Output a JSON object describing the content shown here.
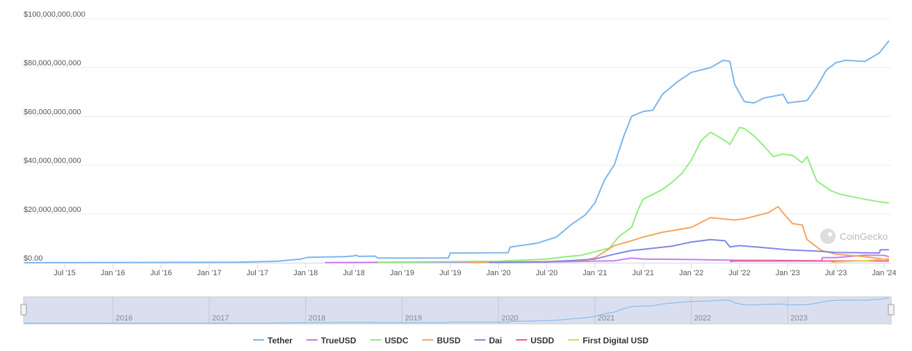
{
  "chart_data": {
    "type": "line",
    "title": "",
    "xlabel": "",
    "ylabel": "",
    "ylim": [
      0,
      100000000000
    ],
    "yticks": [
      "$0.00",
      "$20,000,000,000",
      "$40,000,000,000",
      "$60,000,000,000",
      "$80,000,000,000",
      "$100,000,000,000"
    ],
    "ytick_values": [
      0,
      20,
      40,
      60,
      80,
      100
    ],
    "y_unit": "billions USD",
    "xticks": [
      "Jul '15",
      "Jan '16",
      "Jul '16",
      "Jan '17",
      "Jul '17",
      "Jan '18",
      "Jul '18",
      "Jan '19",
      "Jul '19",
      "Jan '20",
      "Jul '20",
      "Jan '21",
      "Jul '21",
      "Jan '22",
      "Jul '22",
      "Jan '23",
      "Jul '23",
      "Jan '24"
    ],
    "xtick_values": [
      2015.5,
      2016,
      2016.5,
      2017,
      2017.5,
      2018,
      2018.5,
      2019,
      2019.5,
      2020,
      2020.5,
      2021,
      2021.5,
      2022,
      2022.5,
      2023,
      2023.5,
      2024
    ],
    "xlim": [
      2015.08,
      2024.08
    ],
    "grid": true,
    "legend_position": "bottom",
    "navigator_labels": [
      "2016",
      "2017",
      "2018",
      "2019",
      "2020",
      "2021",
      "2022",
      "2023"
    ],
    "watermark": "CoinGecko",
    "series": [
      {
        "name": "Tether",
        "color": "#7cb5ec",
        "points": [
          [
            2015.08,
            0
          ],
          [
            2017.3,
            0.2
          ],
          [
            2017.7,
            0.6
          ],
          [
            2017.95,
            1.5
          ],
          [
            2018.02,
            2.2
          ],
          [
            2018.4,
            2.5
          ],
          [
            2018.5,
            2.8
          ],
          [
            2018.52,
            3.1
          ],
          [
            2018.55,
            2.6
          ],
          [
            2018.72,
            2.7
          ],
          [
            2018.75,
            1.9
          ],
          [
            2019.48,
            1.9
          ],
          [
            2019.5,
            4.0
          ],
          [
            2020.1,
            4.1
          ],
          [
            2020.12,
            6.4
          ],
          [
            2020.4,
            8.0
          ],
          [
            2020.5,
            9.3
          ],
          [
            2020.6,
            10.5
          ],
          [
            2020.75,
            15.5
          ],
          [
            2020.9,
            19.6
          ],
          [
            2021.0,
            24.5
          ],
          [
            2021.1,
            34
          ],
          [
            2021.2,
            40
          ],
          [
            2021.3,
            52
          ],
          [
            2021.38,
            60
          ],
          [
            2021.5,
            62
          ],
          [
            2021.6,
            62.5
          ],
          [
            2021.7,
            69
          ],
          [
            2021.85,
            74
          ],
          [
            2022.0,
            78
          ],
          [
            2022.2,
            80
          ],
          [
            2022.33,
            83
          ],
          [
            2022.4,
            82.5
          ],
          [
            2022.45,
            73
          ],
          [
            2022.55,
            66
          ],
          [
            2022.65,
            65.5
          ],
          [
            2022.75,
            67.5
          ],
          [
            2022.95,
            69
          ],
          [
            2023.0,
            65.5
          ],
          [
            2023.2,
            66.5
          ],
          [
            2023.3,
            72
          ],
          [
            2023.4,
            79
          ],
          [
            2023.5,
            82
          ],
          [
            2023.6,
            83
          ],
          [
            2023.8,
            82.5
          ],
          [
            2023.95,
            86
          ],
          [
            2024.05,
            91
          ]
        ]
      },
      {
        "name": "TrueUSD",
        "color": "#c77cec",
        "points": [
          [
            2018.2,
            0.05
          ],
          [
            2018.9,
            0.2
          ],
          [
            2020.5,
            0.3
          ],
          [
            2021.2,
            0.8
          ],
          [
            2021.38,
            1.9
          ],
          [
            2021.5,
            1.5
          ],
          [
            2022.0,
            1.3
          ],
          [
            2022.5,
            1.0
          ],
          [
            2023.0,
            0.9
          ],
          [
            2023.35,
            0.8
          ],
          [
            2023.36,
            2.1
          ],
          [
            2023.5,
            2.1
          ],
          [
            2023.8,
            3.1
          ],
          [
            2024.0,
            3.0
          ],
          [
            2024.05,
            2.5
          ]
        ]
      },
      {
        "name": "USDC",
        "color": "#90ed7d",
        "points": [
          [
            2018.75,
            0.1
          ],
          [
            2019.5,
            0.5
          ],
          [
            2020.0,
            0.6
          ],
          [
            2020.5,
            1.5
          ],
          [
            2020.7,
            2.5
          ],
          [
            2020.85,
            3.0
          ],
          [
            2021.0,
            4.5
          ],
          [
            2021.15,
            6
          ],
          [
            2021.25,
            10.8
          ],
          [
            2021.38,
            14.5
          ],
          [
            2021.45,
            22
          ],
          [
            2021.5,
            26
          ],
          [
            2021.6,
            28
          ],
          [
            2021.7,
            30
          ],
          [
            2021.8,
            33
          ],
          [
            2021.9,
            36.5
          ],
          [
            2022.0,
            42
          ],
          [
            2022.1,
            50
          ],
          [
            2022.2,
            53.5
          ],
          [
            2022.35,
            50
          ],
          [
            2022.4,
            48.5
          ],
          [
            2022.5,
            55.5
          ],
          [
            2022.55,
            55
          ],
          [
            2022.65,
            52
          ],
          [
            2022.75,
            48
          ],
          [
            2022.85,
            43.5
          ],
          [
            2022.95,
            44.5
          ],
          [
            2023.05,
            44
          ],
          [
            2023.15,
            41
          ],
          [
            2023.2,
            43.5
          ],
          [
            2023.3,
            33.5
          ],
          [
            2023.45,
            29.5
          ],
          [
            2023.55,
            28
          ],
          [
            2023.8,
            26
          ],
          [
            2023.95,
            25
          ],
          [
            2024.05,
            24.5
          ]
        ]
      },
      {
        "name": "BUSD",
        "color": "#f7a35c",
        "points": [
          [
            2019.7,
            0.1
          ],
          [
            2020.5,
            0.5
          ],
          [
            2020.9,
            1.0
          ],
          [
            2021.0,
            2.0
          ],
          [
            2021.2,
            7
          ],
          [
            2021.38,
            9
          ],
          [
            2021.5,
            10.5
          ],
          [
            2021.7,
            12.5
          ],
          [
            2022.0,
            14.5
          ],
          [
            2022.2,
            18.5
          ],
          [
            2022.45,
            17.5
          ],
          [
            2022.55,
            18
          ],
          [
            2022.8,
            20.5
          ],
          [
            2022.9,
            23
          ],
          [
            2022.95,
            20.5
          ],
          [
            2023.05,
            16
          ],
          [
            2023.15,
            15.5
          ],
          [
            2023.2,
            9.5
          ],
          [
            2023.35,
            5
          ],
          [
            2023.5,
            3.5
          ],
          [
            2023.8,
            2.5
          ],
          [
            2024.0,
            1.5
          ],
          [
            2024.05,
            1.2
          ]
        ]
      },
      {
        "name": "Dai",
        "color": "#8085e9",
        "points": [
          [
            2019.9,
            0.1
          ],
          [
            2020.5,
            0.3
          ],
          [
            2020.8,
            1.0
          ],
          [
            2021.0,
            1.5
          ],
          [
            2021.2,
            3.5
          ],
          [
            2021.38,
            5
          ],
          [
            2021.5,
            5.5
          ],
          [
            2021.8,
            6.8
          ],
          [
            2022.0,
            8.5
          ],
          [
            2022.2,
            9.5
          ],
          [
            2022.35,
            9
          ],
          [
            2022.4,
            6.5
          ],
          [
            2022.5,
            7
          ],
          [
            2022.75,
            6.2
          ],
          [
            2023.0,
            5.3
          ],
          [
            2023.3,
            4.8
          ],
          [
            2023.5,
            4.2
          ],
          [
            2023.95,
            4
          ],
          [
            2023.96,
            5.3
          ],
          [
            2024.05,
            5.3
          ]
        ]
      },
      {
        "name": "USDD",
        "color": "#f15c80",
        "points": [
          [
            2022.4,
            0.5
          ],
          [
            2022.45,
            0.7
          ],
          [
            2022.5,
            0.7
          ],
          [
            2023.0,
            0.7
          ],
          [
            2023.5,
            0.7
          ],
          [
            2023.85,
            0.8
          ],
          [
            2024.0,
            0.7
          ],
          [
            2024.05,
            0.7
          ]
        ]
      },
      {
        "name": "First Digital USD",
        "color": "#e4d354",
        "points": [
          [
            2023.45,
            0
          ],
          [
            2023.5,
            0.3
          ],
          [
            2023.8,
            0.8
          ],
          [
            2024.0,
            1.5
          ],
          [
            2024.05,
            1.8
          ]
        ]
      }
    ]
  }
}
